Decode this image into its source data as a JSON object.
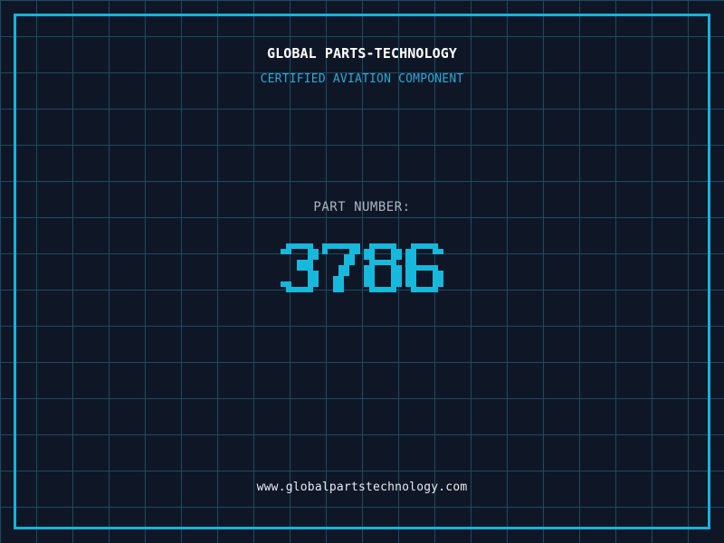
{
  "page": {
    "background_color": "#0f1727",
    "grid_line_color": "#1b4b61",
    "frame_color": "#18b2da"
  },
  "header": {
    "title": "GLOBAL PARTS-TECHNOLOGY",
    "title_color": "#ffffff",
    "subtitle": "CERTIFIED AVIATION COMPONENT",
    "subtitle_color": "#31a6d6"
  },
  "part_number": {
    "label": "PART NUMBER:",
    "label_color": "#aab6c0",
    "value": "3786",
    "value_color": "#16b8dc"
  },
  "footer": {
    "website": "www.globalpartstechnology.com",
    "website_color": "#e6ecf0"
  }
}
